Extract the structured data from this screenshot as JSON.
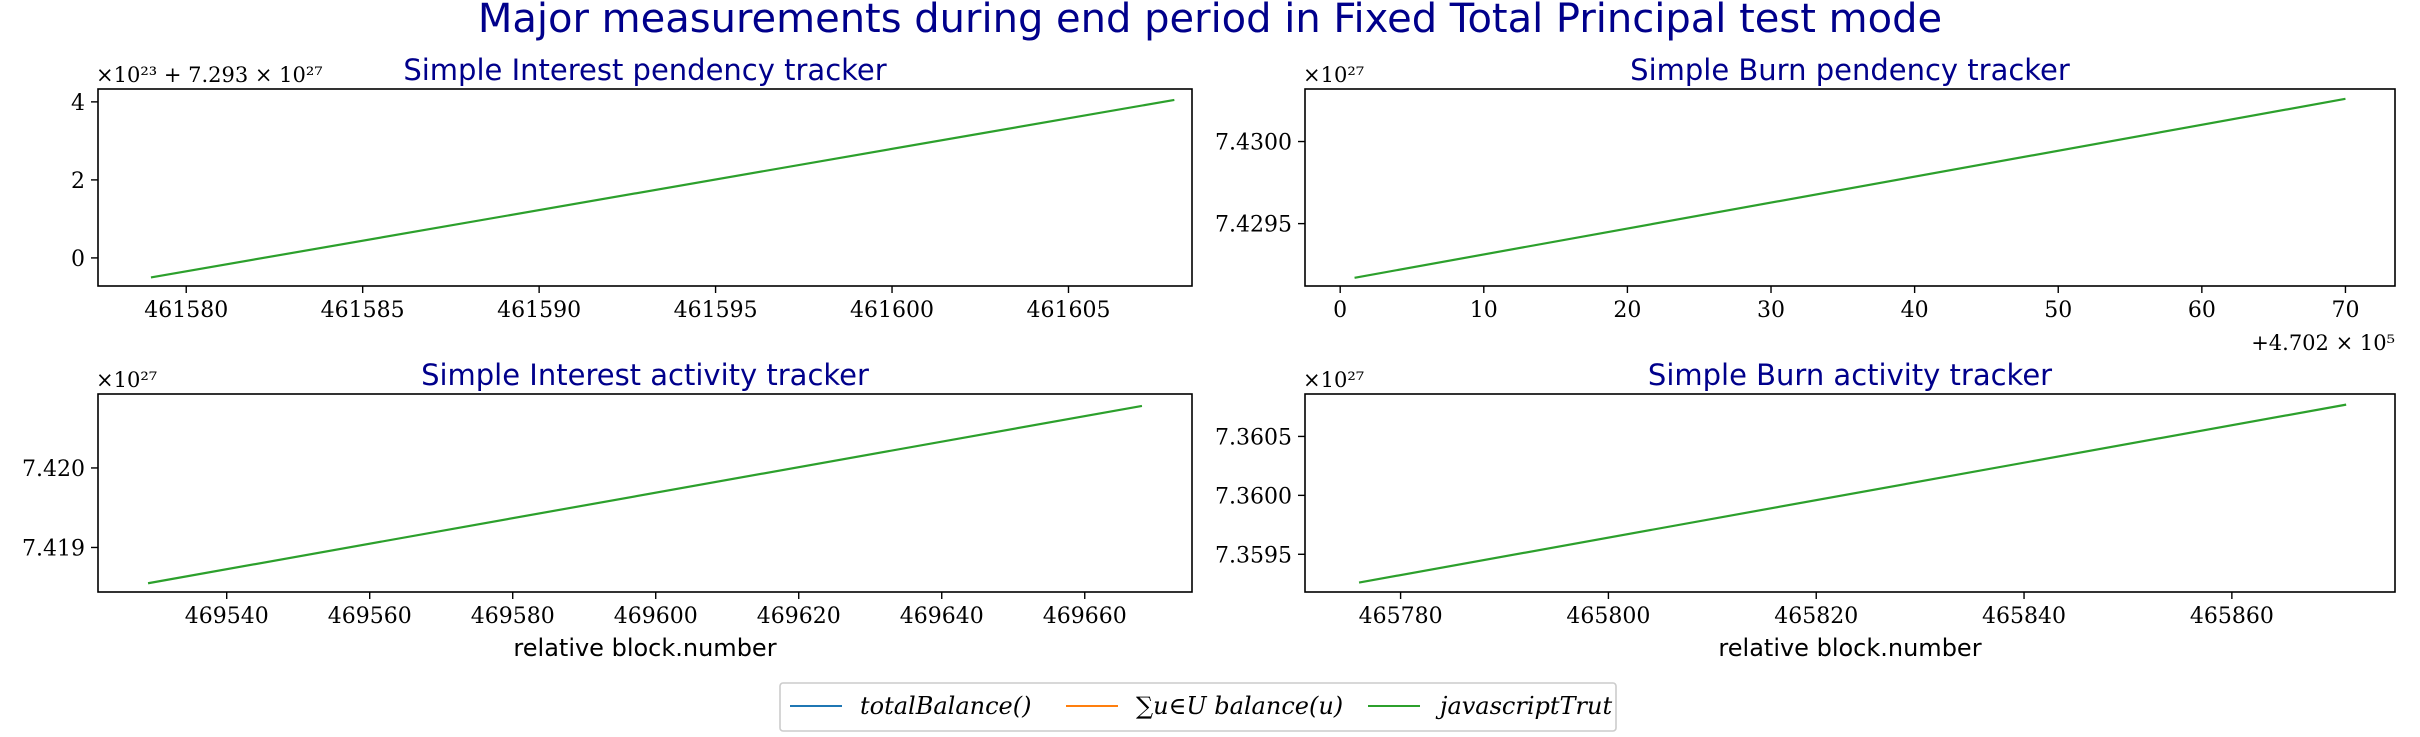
{
  "figure": {
    "title": "Major measurements during end period in Fixed Total Principal test mode"
  },
  "legend": {
    "placement": "bottom-center",
    "items": [
      {
        "label": "totalBalance()",
        "color": "#1f77b4"
      },
      {
        "label": "∑u∈U balance(u)",
        "color": "#ff7f0e"
      },
      {
        "label": "javascriptTrut",
        "color": "#2ca02c"
      }
    ]
  },
  "chart_data": [
    {
      "type": "line",
      "title": "Simple Interest pendency tracker",
      "xlabel": "",
      "ylabel": "",
      "offset_text_y": "×10²³ + 7.293 × 10²⁷",
      "xlim": [
        461577.5,
        461608.5
      ],
      "ylim": [
        -0.72,
        4.33
      ],
      "xticks": [
        461580,
        461585,
        461590,
        461595,
        461600,
        461605
      ],
      "xtick_labels": [
        "461580",
        "461585",
        "461590",
        "461595",
        "461600",
        "461605"
      ],
      "yticks": [
        0,
        2,
        4
      ],
      "ytick_labels": [
        "0",
        "2",
        "4"
      ],
      "series": [
        {
          "name": "javascriptTrut",
          "color": "#2ca02c",
          "x": [
            461579,
            461608
          ],
          "y": [
            -0.5,
            4.05
          ]
        }
      ]
    },
    {
      "type": "line",
      "title": "Simple Burn pendency tracker",
      "xlabel": "",
      "ylabel": "",
      "offset_text_y": "×10²⁷",
      "offset_text_x": "+4.702 × 10⁵",
      "xlim": [
        -2.45,
        73.45
      ],
      "ylim": [
        7.42912,
        7.43032
      ],
      "xticks": [
        0,
        10,
        20,
        30,
        40,
        50,
        60,
        70
      ],
      "xtick_labels": [
        "0",
        "10",
        "20",
        "30",
        "40",
        "50",
        "60",
        "70"
      ],
      "yticks": [
        7.4295,
        7.43
      ],
      "ytick_labels": [
        "7.4295",
        "7.4300"
      ],
      "series": [
        {
          "name": "javascriptTrut",
          "color": "#2ca02c",
          "x": [
            1,
            70
          ],
          "y": [
            7.42917,
            7.43026
          ]
        }
      ]
    },
    {
      "type": "line",
      "title": "Simple Interest activity tracker",
      "xlabel": "relative block.number",
      "ylabel": "",
      "offset_text_y": "×10²⁷",
      "xlim": [
        469522,
        469675
      ],
      "ylim": [
        7.41844,
        7.42093
      ],
      "xticks": [
        469540,
        469560,
        469580,
        469600,
        469620,
        469640,
        469660
      ],
      "xtick_labels": [
        "469540",
        "469560",
        "469580",
        "469600",
        "469620",
        "469640",
        "469660"
      ],
      "yticks": [
        7.419,
        7.42
      ],
      "ytick_labels": [
        "7.419",
        "7.420"
      ],
      "series": [
        {
          "name": "javascriptTrut",
          "color": "#2ca02c",
          "x": [
            469529,
            469668
          ],
          "y": [
            7.41855,
            7.42078
          ]
        }
      ]
    },
    {
      "type": "line",
      "title": "Simple Burn activity tracker",
      "xlabel": "relative block.number",
      "ylabel": "",
      "offset_text_y": "×10²⁷",
      "xlim": [
        465770.8,
        465875.7
      ],
      "ylim": [
        7.35918,
        7.36086
      ],
      "xticks": [
        465780,
        465800,
        465820,
        465840,
        465860
      ],
      "xtick_labels": [
        "465780",
        "465800",
        "465820",
        "465840",
        "465860"
      ],
      "yticks": [
        7.3595,
        7.36,
        7.3605
      ],
      "ytick_labels": [
        "7.3595",
        "7.3600",
        "7.3605"
      ],
      "series": [
        {
          "name": "javascriptTrut",
          "color": "#2ca02c",
          "x": [
            465776,
            465871
          ],
          "y": [
            7.35926,
            7.36077
          ]
        }
      ]
    }
  ]
}
